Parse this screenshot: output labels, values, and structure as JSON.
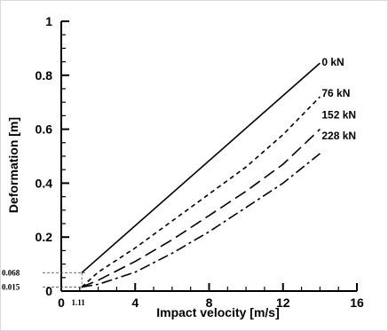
{
  "chart_data": {
    "type": "line",
    "xlabel": "Impact velocity [m/s]",
    "ylabel": "Deformation [m]",
    "xlim": [
      0,
      16
    ],
    "ylim": [
      0,
      1
    ],
    "x_major_ticks": [
      0,
      4,
      8,
      12,
      16
    ],
    "y_major_ticks": [
      0,
      0.2,
      0.4,
      0.6,
      0.8,
      1
    ],
    "x_tick_labels": [
      "0",
      "4",
      "8",
      "12",
      "16"
    ],
    "y_tick_labels": [
      "0",
      "0.2",
      "0.4",
      "0.6",
      "0.8",
      "1"
    ],
    "grid": false,
    "legend": "labels at line ends (right)",
    "series": [
      {
        "name": "0 kN",
        "style": "solid",
        "x": [
          1.11,
          14
        ],
        "y": [
          0.068,
          0.845
        ]
      },
      {
        "name": "76 kN",
        "style": "dash",
        "x": [
          1.11,
          2,
          4,
          6,
          8,
          10,
          12,
          14
        ],
        "y": [
          0.015,
          0.07,
          0.16,
          0.26,
          0.36,
          0.46,
          0.58,
          0.72
        ]
      },
      {
        "name": "152 kN",
        "style": "longdash",
        "x": [
          1.11,
          2,
          4,
          6,
          8,
          10,
          12,
          14
        ],
        "y": [
          0.015,
          0.04,
          0.11,
          0.19,
          0.28,
          0.37,
          0.47,
          0.6
        ]
      },
      {
        "name": "228 kN",
        "style": "dashdot",
        "x": [
          1.11,
          2,
          4,
          6,
          8,
          10,
          12,
          14
        ],
        "y": [
          0.015,
          0.025,
          0.07,
          0.14,
          0.22,
          0.31,
          0.4,
          0.51
        ]
      }
    ],
    "annotations": [
      {
        "text": "0.068",
        "at_x": 1.11,
        "at_y": 0.068
      },
      {
        "text": "0.015",
        "at_x": 1.11,
        "at_y": 0.015
      },
      {
        "text": "1.11",
        "at_x": 1.11,
        "at_y": 0
      }
    ]
  }
}
